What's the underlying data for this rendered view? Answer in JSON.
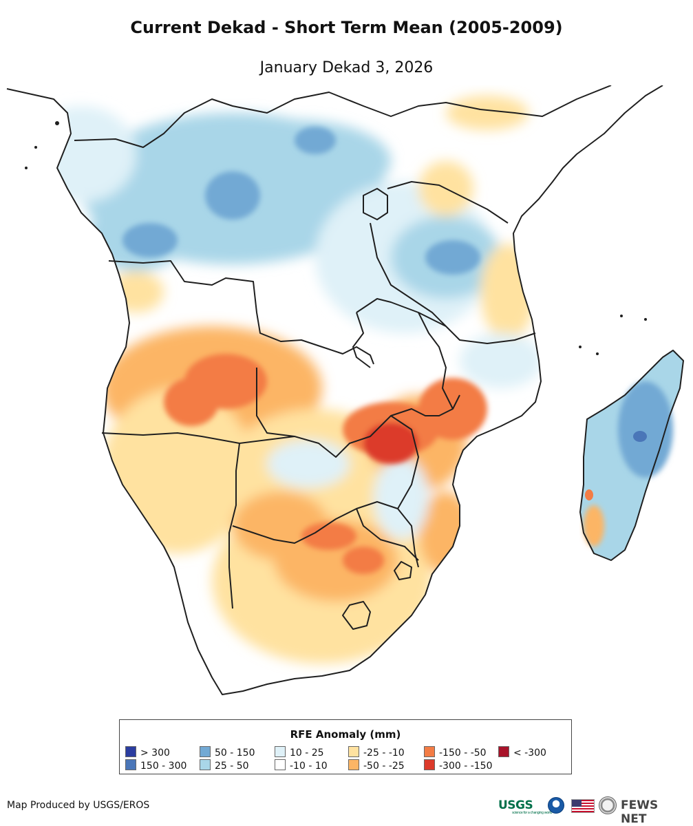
{
  "header": {
    "title": "Current Dekad - Short Term Mean (2005-2009)",
    "subtitle": "January Dekad 3, 2026"
  },
  "map": {
    "region": "Southern Africa and Madagascar",
    "variable": "RFE Anomaly (mm)"
  },
  "legend": {
    "title": "RFE Anomaly (mm)",
    "items": [
      {
        "label": "> 300",
        "color": "#2b3da0"
      },
      {
        "label": "150 - 300",
        "color": "#4a76b8"
      },
      {
        "label": "50 - 150",
        "color": "#72a9d4"
      },
      {
        "label": "25 - 50",
        "color": "#a9d6e8"
      },
      {
        "label": "10 - 25",
        "color": "#dff1f8"
      },
      {
        "label": "-10 - 10",
        "color": "#ffffff"
      },
      {
        "label": "-25 - -10",
        "color": "#ffe2a0"
      },
      {
        "label": "-50 - -25",
        "color": "#fcb565"
      },
      {
        "label": "-150 - -50",
        "color": "#f37c45"
      },
      {
        "label": "-300 - -150",
        "color": "#dc3a2a"
      },
      {
        "label": "< -300",
        "color": "#a8132a"
      }
    ]
  },
  "footer": {
    "credit": "Map Produced by USGS/EROS",
    "logos": {
      "usgs": "USGS",
      "usgs_tagline": "science for a changing world",
      "fews": "FEWS NET"
    }
  }
}
